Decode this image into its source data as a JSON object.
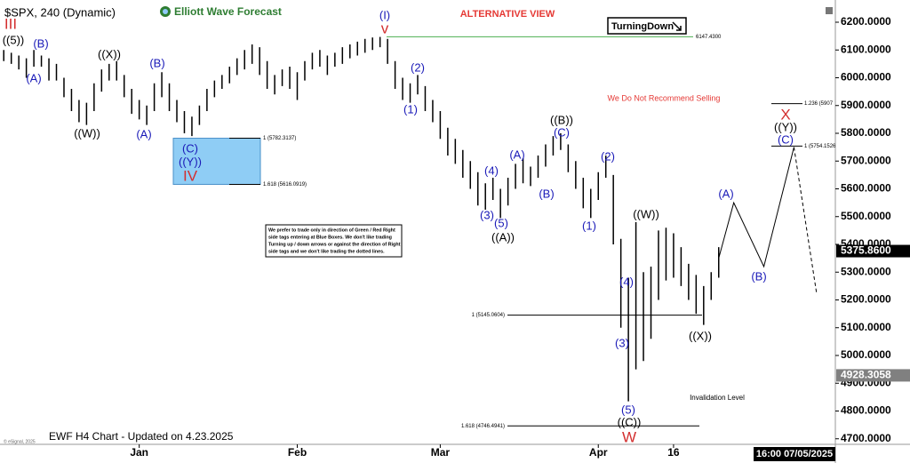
{
  "chart_data": {
    "type": "ohlc",
    "title": "$SPX, 240 (Dynamic)",
    "color": "#000000",
    "x": [
      0,
      1,
      2,
      3,
      4,
      5,
      6,
      7,
      8,
      9,
      10,
      11,
      12,
      13,
      14,
      15,
      16,
      17,
      18,
      19,
      20,
      21,
      22,
      23,
      24,
      25,
      26,
      27,
      28,
      29,
      30,
      31,
      32,
      33,
      34,
      35,
      36,
      37,
      38,
      39,
      40,
      41,
      42,
      43,
      44,
      45,
      46,
      47,
      48,
      49,
      50,
      51,
      52,
      53,
      54,
      55,
      56,
      57,
      58,
      59,
      60,
      61,
      62,
      63,
      64,
      65,
      66,
      67,
      68,
      69,
      70,
      71,
      72,
      73,
      74,
      75,
      76,
      77,
      78,
      79,
      80,
      81,
      82,
      83,
      84,
      85,
      86,
      87,
      88,
      89,
      90,
      91,
      92,
      93,
      94,
      95
    ],
    "high": [
      6100,
      6090,
      6080,
      6070,
      6100,
      6080,
      6070,
      6050,
      6000,
      5960,
      5920,
      5910,
      5980,
      6030,
      6050,
      6060,
      6010,
      5960,
      5920,
      5900,
      5980,
      6020,
      5980,
      5920,
      5880,
      5860,
      5900,
      5960,
      5990,
      6010,
      6040,
      6070,
      6100,
      6120,
      6110,
      6060,
      6010,
      6030,
      6040,
      6020,
      6060,
      6090,
      6100,
      6080,
      6090,
      6110,
      6120,
      6130,
      6140,
      6145,
      6147,
      6140,
      6060,
      6000,
      5980,
      6010,
      5970,
      5920,
      5880,
      5820,
      5780,
      5740,
      5700,
      5660,
      5620,
      5640,
      5600,
      5640,
      5690,
      5710,
      5680,
      5720,
      5760,
      5790,
      5800,
      5760,
      5700,
      5640,
      5600,
      5660,
      5720,
      5650,
      5420,
      5280,
      5480,
      5300,
      5320,
      5450,
      5460,
      5440,
      5390,
      5330,
      5290,
      5250,
      5300,
      5390
    ],
    "low": [
      6060,
      6050,
      6030,
      6000,
      6040,
      6040,
      5990,
      5990,
      5930,
      5880,
      5840,
      5830,
      5880,
      5950,
      5990,
      5990,
      5930,
      5870,
      5850,
      5830,
      5880,
      5930,
      5880,
      5840,
      5800,
      5790,
      5830,
      5880,
      5930,
      5960,
      5980,
      6010,
      6030,
      6050,
      6010,
      5960,
      5940,
      5970,
      5960,
      5920,
      5990,
      6030,
      6040,
      6010,
      6040,
      6050,
      6070,
      6080,
      6090,
      6100,
      6110,
      6050,
      5960,
      5920,
      5910,
      5940,
      5880,
      5840,
      5780,
      5720,
      5690,
      5640,
      5600,
      5540,
      5525,
      5560,
      5495,
      5540,
      5600,
      5620,
      5610,
      5640,
      5680,
      5720,
      5740,
      5660,
      5600,
      5530,
      5495,
      5560,
      5640,
      5400,
      5100,
      4835,
      4950,
      4980,
      5060,
      5200,
      5270,
      5280,
      5250,
      5200,
      5150,
      5110,
      5200,
      5280
    ],
    "xlim": [
      -0.5,
      110.5
    ],
    "xticks": [
      {
        "value": 18,
        "label": "Jan"
      },
      {
        "value": 39,
        "label": "Feb"
      },
      {
        "value": 58,
        "label": "Mar"
      },
      {
        "value": 79,
        "label": "Apr"
      },
      {
        "value": 89,
        "label": "16"
      }
    ],
    "ylim": [
      4680,
      6280
    ],
    "yticks": [
      {
        "value": 4700,
        "label": "4700.0000"
      },
      {
        "value": 4800,
        "label": "4800.0000"
      },
      {
        "value": 4900,
        "label": "4900.0000"
      },
      {
        "value": 5000,
        "label": "5000.0000"
      },
      {
        "value": 5100,
        "label": "5100.0000"
      },
      {
        "value": 5200,
        "label": "5200.0000"
      },
      {
        "value": 5300,
        "label": "5300.0000"
      },
      {
        "value": 5400,
        "label": "5400.0000"
      },
      {
        "value": 5500,
        "label": "5500.0000"
      },
      {
        "value": 5600,
        "label": "5600.0000"
      },
      {
        "value": 5700,
        "label": "5700.0000"
      },
      {
        "value": 5800,
        "label": "5800.0000"
      },
      {
        "value": 5900,
        "label": "5900.0000"
      },
      {
        "value": 6000,
        "label": "6000.0000"
      },
      {
        "value": 6100,
        "label": "6100.0000"
      },
      {
        "value": 6200,
        "label": "6200.0000"
      }
    ],
    "projection": {
      "x": [
        95,
        97,
        101,
        105
      ],
      "y": [
        5350,
        5550,
        5320,
        5750
      ]
    },
    "projection_dashed": {
      "x": [
        105,
        108
      ],
      "y": [
        5750,
        5225
      ]
    },
    "levels": [
      {
        "value": 6147.43,
        "label": "6147.4300",
        "color": "#4caf50"
      },
      {
        "value": 5782.3137,
        "label": "1 (5782.3137)",
        "color": "#000000"
      },
      {
        "value": 5616.0919,
        "label": "1.618 (5616.0919)",
        "color": "#000000"
      },
      {
        "value": 5145.0604,
        "label": "1 (5145.0604)",
        "color": "#000000"
      },
      {
        "value": 4746.4941,
        "label": "1.618 (4746.4941)",
        "color": "#000000"
      },
      {
        "value": 5907,
        "label": "1.236 (5907",
        "color": "#000000"
      },
      {
        "value": 5754.1526,
        "label": "1 (5754.1526",
        "color": "#000000"
      }
    ],
    "box_color": "#8fcdf5",
    "wave_labels": [
      {
        "text": "((5))",
        "color": "#000000"
      },
      {
        "text": "III",
        "color": "#d32f2f"
      },
      {
        "text": "(B)",
        "color": "#1a1ab8"
      },
      {
        "text": "(A)",
        "color": "#1a1ab8"
      },
      {
        "text": "((X))",
        "color": "#000000"
      },
      {
        "text": "((W))",
        "color": "#000000"
      },
      {
        "text": "(B)",
        "color": "#1a1ab8"
      },
      {
        "text": "(A)",
        "color": "#1a1ab8"
      },
      {
        "text": "(C)",
        "color": "#1a1ab8"
      },
      {
        "text": "((Y))",
        "color": "#1a1ab8"
      },
      {
        "text": "IV",
        "color": "#d32f2f"
      },
      {
        "text": "(I)",
        "color": "#1a1ab8"
      },
      {
        "text": "v",
        "color": "#d32f2f"
      },
      {
        "text": "(2)",
        "color": "#1a1ab8"
      },
      {
        "text": "(1)",
        "color": "#1a1ab8"
      },
      {
        "text": "(4)",
        "color": "#1a1ab8"
      },
      {
        "text": "(3)",
        "color": "#1a1ab8"
      },
      {
        "text": "(5)",
        "color": "#1a1ab8"
      },
      {
        "text": "((A))",
        "color": "#000000"
      },
      {
        "text": "(A)",
        "color": "#1a1ab8"
      },
      {
        "text": "(B)",
        "color": "#1a1ab8"
      },
      {
        "text": "((B))",
        "color": "#000000"
      },
      {
        "text": "(C)",
        "color": "#1a1ab8"
      },
      {
        "text": "(2)",
        "color": "#1a1ab8"
      },
      {
        "text": "(1)",
        "color": "#1a1ab8"
      },
      {
        "text": "((W))",
        "color": "#000000"
      },
      {
        "text": "(4)",
        "color": "#1a1ab8"
      },
      {
        "text": "(3)",
        "color": "#1a1ab8"
      },
      {
        "text": "(5)",
        "color": "#1a1ab8"
      },
      {
        "text": "((C))",
        "color": "#000000"
      },
      {
        "text": "W",
        "color": "#d32f2f"
      },
      {
        "text": "((X))",
        "color": "#000000"
      },
      {
        "text": "(A)",
        "color": "#1a1ab8"
      },
      {
        "text": "(B)",
        "color": "#1a1ab8"
      },
      {
        "text": "X",
        "color": "#d32f2f"
      },
      {
        "text": "((Y))",
        "color": "#000000"
      },
      {
        "text": "(C)",
        "color": "#1a1ab8"
      }
    ],
    "price_tags": [
      {
        "value": 5375.86,
        "label": "5375.8600",
        "color": "#000000"
      },
      {
        "value": 4928.3058,
        "label": "4928.3058",
        "color": "#808080"
      }
    ],
    "timestamp": "16:00 07/05/2025",
    "annotations": {
      "logo": "Elliott Wave Forecast",
      "view": "ALTERNATIVE VIEW",
      "signal": "TurningDown",
      "recommendation": "We Do Not Recommend Selling",
      "invalidation": "Invalidation Level",
      "footer": "EWF H4 Chart - Updated on 4.23.2025",
      "copyright": "© eSignal, 2025",
      "note": [
        "We prefer to trade only in direction of Green / Red Right",
        "side tags entering at Blue Boxes. We don't like trading",
        "Turning up / down arrows or against the direction of Right",
        "side tags and we don't like trading the dotted lines."
      ]
    }
  }
}
